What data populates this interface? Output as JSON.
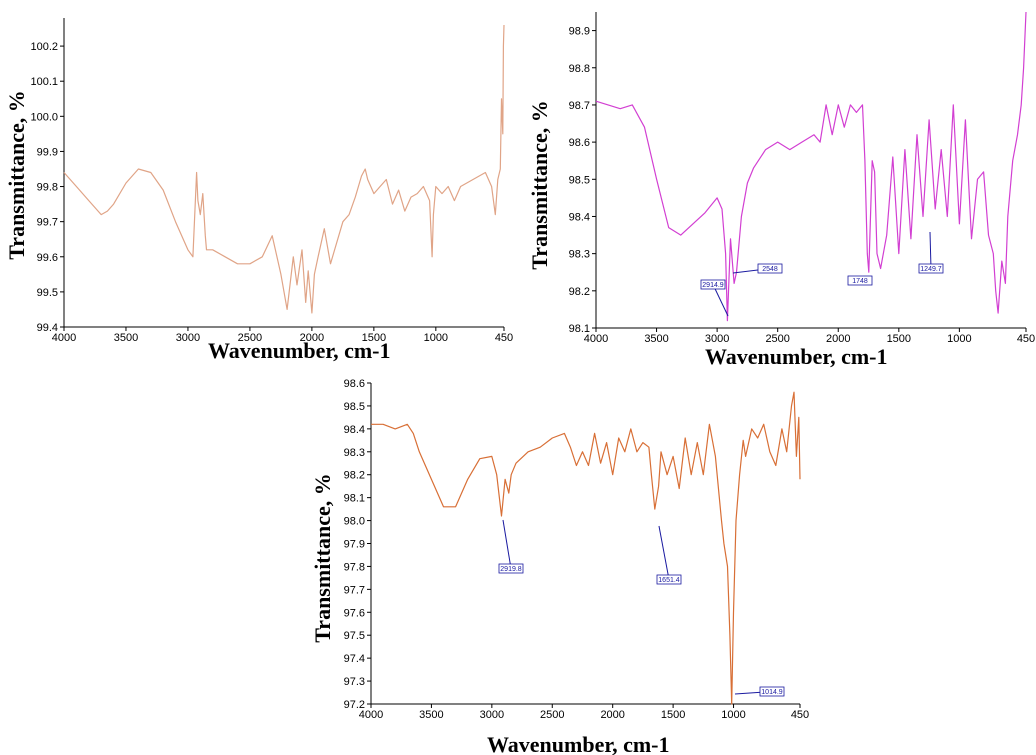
{
  "chart_data": [
    {
      "type": "line",
      "xlabel": "Wavenumber, cm-1",
      "ylabel": "Transmittance, %",
      "xlim": [
        4000,
        450
      ],
      "ylim": [
        99.4,
        100.28
      ],
      "xticks": [
        4000,
        3500,
        3000,
        2500,
        2000,
        1500,
        1000,
        450
      ],
      "yticks": [
        "99.4",
        "99.5",
        "99.6",
        "99.7",
        "99.8",
        "99.9",
        "100.0",
        "100.1",
        "100.2"
      ],
      "color": "#e0a487",
      "annotations": [],
      "series": [
        {
          "x": [
            4000,
            3900,
            3800,
            3700,
            3650,
            3600,
            3500,
            3400,
            3300,
            3200,
            3100,
            3000,
            2960,
            2930,
            2920,
            2900,
            2880,
            2860,
            2850,
            2800,
            2700,
            2600,
            2500,
            2400,
            2320,
            2250,
            2200,
            2150,
            2120,
            2080,
            2050,
            2030,
            2000,
            1980,
            1950,
            1900,
            1850,
            1800,
            1750,
            1700,
            1650,
            1600,
            1570,
            1550,
            1500,
            1450,
            1400,
            1350,
            1300,
            1250,
            1200,
            1150,
            1100,
            1050,
            1030,
            1020,
            1000,
            950,
            900,
            850,
            800,
            700,
            600,
            550,
            520,
            500,
            480,
            470,
            460,
            455,
            450
          ],
          "y": [
            99.84,
            99.8,
            99.76,
            99.72,
            99.73,
            99.75,
            99.81,
            99.85,
            99.84,
            99.79,
            99.7,
            99.62,
            99.6,
            99.84,
            99.76,
            99.72,
            99.78,
            99.66,
            99.62,
            99.62,
            99.6,
            99.58,
            99.58,
            99.6,
            99.66,
            99.55,
            99.45,
            99.6,
            99.52,
            99.62,
            99.47,
            99.56,
            99.44,
            99.55,
            99.6,
            99.68,
            99.58,
            99.64,
            99.7,
            99.72,
            99.77,
            99.83,
            99.85,
            99.82,
            99.78,
            99.8,
            99.82,
            99.75,
            99.79,
            99.73,
            99.77,
            99.78,
            99.8,
            99.76,
            99.6,
            99.72,
            99.8,
            99.78,
            99.8,
            99.76,
            99.8,
            99.82,
            99.84,
            99.8,
            99.72,
            99.82,
            99.85,
            100.05,
            99.95,
            100.2,
            100.26
          ]
        }
      ]
    },
    {
      "type": "line",
      "xlabel": "Wavenumber, cm-1",
      "ylabel": "Transmittance, %",
      "xlim": [
        4000,
        450
      ],
      "ylim": [
        98.1,
        98.95
      ],
      "xticks": [
        4000,
        3500,
        3000,
        2500,
        2000,
        1500,
        1000,
        450
      ],
      "yticks": [
        "98.1",
        "98.2",
        "98.3",
        "98.4",
        "98.5",
        "98.6",
        "98.7",
        "98.8",
        "98.9"
      ],
      "color": "#d23fd2",
      "annotations": [
        "2914.9",
        "2548",
        "1748",
        "1249.7"
      ],
      "series": [
        {
          "x": [
            4000,
            3900,
            3800,
            3700,
            3600,
            3500,
            3400,
            3300,
            3200,
            3100,
            3000,
            2960,
            2930,
            2914.9,
            2890,
            2860,
            2840,
            2800,
            2750,
            2700,
            2600,
            2500,
            2400,
            2300,
            2200,
            2150,
            2100,
            2050,
            2000,
            1950,
            1900,
            1850,
            1800,
            1780,
            1760,
            1748,
            1720,
            1700,
            1680,
            1650,
            1600,
            1550,
            1500,
            1450,
            1400,
            1350,
            1300,
            1249.7,
            1200,
            1150,
            1100,
            1050,
            1000,
            950,
            900,
            850,
            800,
            760,
            720,
            700,
            680,
            650,
            620,
            600,
            560,
            520,
            490,
            470,
            450
          ],
          "y": [
            98.71,
            98.7,
            98.69,
            98.7,
            98.64,
            98.5,
            98.37,
            98.35,
            98.38,
            98.41,
            98.45,
            98.42,
            98.3,
            98.12,
            98.34,
            98.22,
            98.25,
            98.4,
            98.49,
            98.53,
            98.58,
            98.6,
            98.58,
            98.6,
            98.62,
            98.6,
            98.7,
            98.62,
            98.7,
            98.64,
            98.7,
            98.68,
            98.7,
            98.55,
            98.3,
            98.25,
            98.55,
            98.52,
            98.3,
            98.26,
            98.35,
            98.56,
            98.3,
            98.58,
            98.34,
            98.62,
            98.4,
            98.66,
            98.42,
            98.58,
            98.4,
            98.7,
            98.38,
            98.66,
            98.34,
            98.5,
            98.52,
            98.35,
            98.3,
            98.2,
            98.14,
            98.28,
            98.22,
            98.4,
            98.55,
            98.62,
            98.7,
            98.8,
            98.95
          ]
        }
      ]
    },
    {
      "type": "line",
      "xlabel": "Wavenumber, cm-1",
      "ylabel": "Transmittance, %",
      "xlim": [
        4000,
        450
      ],
      "ylim": [
        97.2,
        98.6
      ],
      "xticks": [
        4000,
        3500,
        3000,
        2500,
        2000,
        1500,
        1000,
        450
      ],
      "yticks": [
        "97.2",
        "97.3",
        "97.4",
        "97.5",
        "97.6",
        "97.7",
        "97.8",
        "97.9",
        "98.0",
        "98.1",
        "98.2",
        "98.3",
        "98.4",
        "98.5",
        "98.6"
      ],
      "color": "#d86f36",
      "annotations": [
        "2919.8",
        "1651.4",
        "1014.9"
      ],
      "series": [
        {
          "x": [
            4000,
            3900,
            3800,
            3700,
            3650,
            3600,
            3500,
            3400,
            3300,
            3200,
            3100,
            3000,
            2960,
            2919.8,
            2890,
            2860,
            2840,
            2800,
            2700,
            2600,
            2500,
            2400,
            2350,
            2300,
            2250,
            2200,
            2150,
            2100,
            2050,
            2000,
            1950,
            1900,
            1850,
            1800,
            1750,
            1700,
            1680,
            1651.4,
            1620,
            1600,
            1550,
            1500,
            1450,
            1400,
            1350,
            1300,
            1250,
            1200,
            1150,
            1100,
            1080,
            1050,
            1030,
            1014.9,
            1000,
            980,
            950,
            920,
            900,
            850,
            800,
            750,
            700,
            650,
            600,
            560,
            520,
            500,
            480,
            460,
            450
          ],
          "y": [
            98.42,
            98.42,
            98.4,
            98.42,
            98.38,
            98.3,
            98.18,
            98.06,
            98.06,
            98.18,
            98.27,
            98.28,
            98.2,
            98.02,
            98.18,
            98.12,
            98.2,
            98.25,
            98.3,
            98.32,
            98.36,
            98.38,
            98.32,
            98.24,
            98.3,
            98.24,
            98.38,
            98.25,
            98.34,
            98.2,
            98.36,
            98.3,
            98.4,
            98.3,
            98.34,
            98.32,
            98.2,
            98.05,
            98.15,
            98.3,
            98.2,
            98.28,
            98.14,
            98.36,
            98.2,
            98.34,
            98.2,
            98.42,
            98.28,
            98.0,
            97.9,
            97.8,
            97.5,
            97.2,
            97.6,
            98.0,
            98.2,
            98.35,
            98.28,
            98.4,
            98.36,
            98.42,
            98.3,
            98.24,
            98.4,
            98.3,
            98.5,
            98.56,
            98.28,
            98.45,
            98.18
          ]
        }
      ]
    }
  ]
}
